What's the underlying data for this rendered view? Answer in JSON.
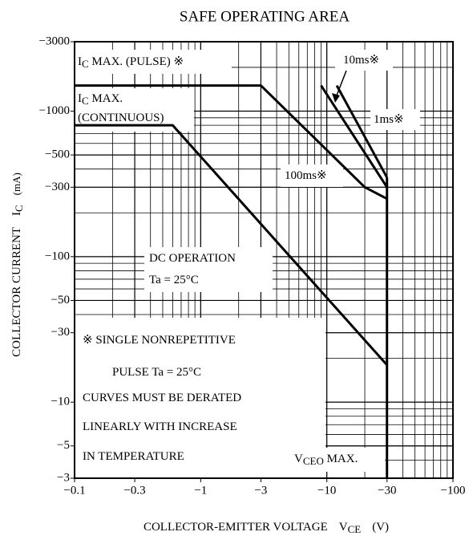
{
  "chart_data": {
    "type": "line",
    "title": "SAFE OPERATING AREA",
    "x_label": [
      "COLLECTOR-EMITTER VOLTAGE",
      "V",
      "CE",
      "(V)"
    ],
    "y_label": [
      "COLLECTOR CURRENT",
      "I",
      "C",
      "(mA)"
    ],
    "log_x": true,
    "log_y": true,
    "grid": true,
    "color": "#000000",
    "xlim": [
      -0.1,
      -100
    ],
    "ylim": [
      -3,
      -3000
    ],
    "xticks": [
      {
        "value": -0.1,
        "label": "−0.1"
      },
      {
        "value": -0.3,
        "label": "−0.3"
      },
      {
        "value": -1,
        "label": "−1"
      },
      {
        "value": -3,
        "label": "−3"
      },
      {
        "value": -10,
        "label": "−10"
      },
      {
        "value": -30,
        "label": "−30"
      },
      {
        "value": -100,
        "label": "−100"
      }
    ],
    "yticks": [
      {
        "value": -3,
        "label": "−3"
      },
      {
        "value": -5,
        "label": "−5"
      },
      {
        "value": -10,
        "label": "−10"
      },
      {
        "value": -30,
        "label": "−30"
      },
      {
        "value": -50,
        "label": "−50"
      },
      {
        "value": -100,
        "label": "−100"
      },
      {
        "value": -300,
        "label": "−300"
      },
      {
        "value": -500,
        "label": "−500"
      },
      {
        "value": -1000,
        "label": "−1000"
      },
      {
        "value": -3000,
        "label": "−3000"
      }
    ],
    "series": [
      {
        "name": "DC OPERATION",
        "x": [
          -0.1,
          -0.6,
          -30
        ],
        "values": [
          -800,
          -800,
          -18
        ]
      },
      {
        "name": "100ms※",
        "x": [
          -0.1,
          -3,
          -20,
          -30
        ],
        "values": [
          -1500,
          -1500,
          -300,
          -250
        ]
      },
      {
        "name": "10ms※",
        "x": [
          -9,
          -30
        ],
        "values": [
          -1500,
          -300
        ]
      },
      {
        "name": "1ms※",
        "x": [
          -12,
          -30
        ],
        "values": [
          -1500,
          -350
        ]
      },
      {
        "name": "VCEO MAX.",
        "x": [
          -30,
          -30
        ],
        "values": [
          -350,
          -3
        ]
      }
    ],
    "annotations": [
      [
        "I",
        "C",
        " MAX. (PULSE) ※"
      ],
      [
        "I",
        "C",
        " MAX."
      ],
      [
        "(CONTINUOUS)"
      ],
      [
        "10ms※"
      ],
      [
        "1ms※"
      ],
      [
        "100ms※"
      ],
      [
        "DC OPERATION"
      ],
      [
        "Ta = 25°C"
      ],
      [
        "※  SINGLE NONREPETITIVE"
      ],
      [
        "PULSE   Ta = 25°C"
      ],
      [
        "CURVES MUST BE DERATED"
      ],
      [
        "LINEARLY WITH INCREASE"
      ],
      [
        "IN TEMPERATURE"
      ],
      [
        "V",
        "CEO",
        " MAX."
      ]
    ]
  }
}
